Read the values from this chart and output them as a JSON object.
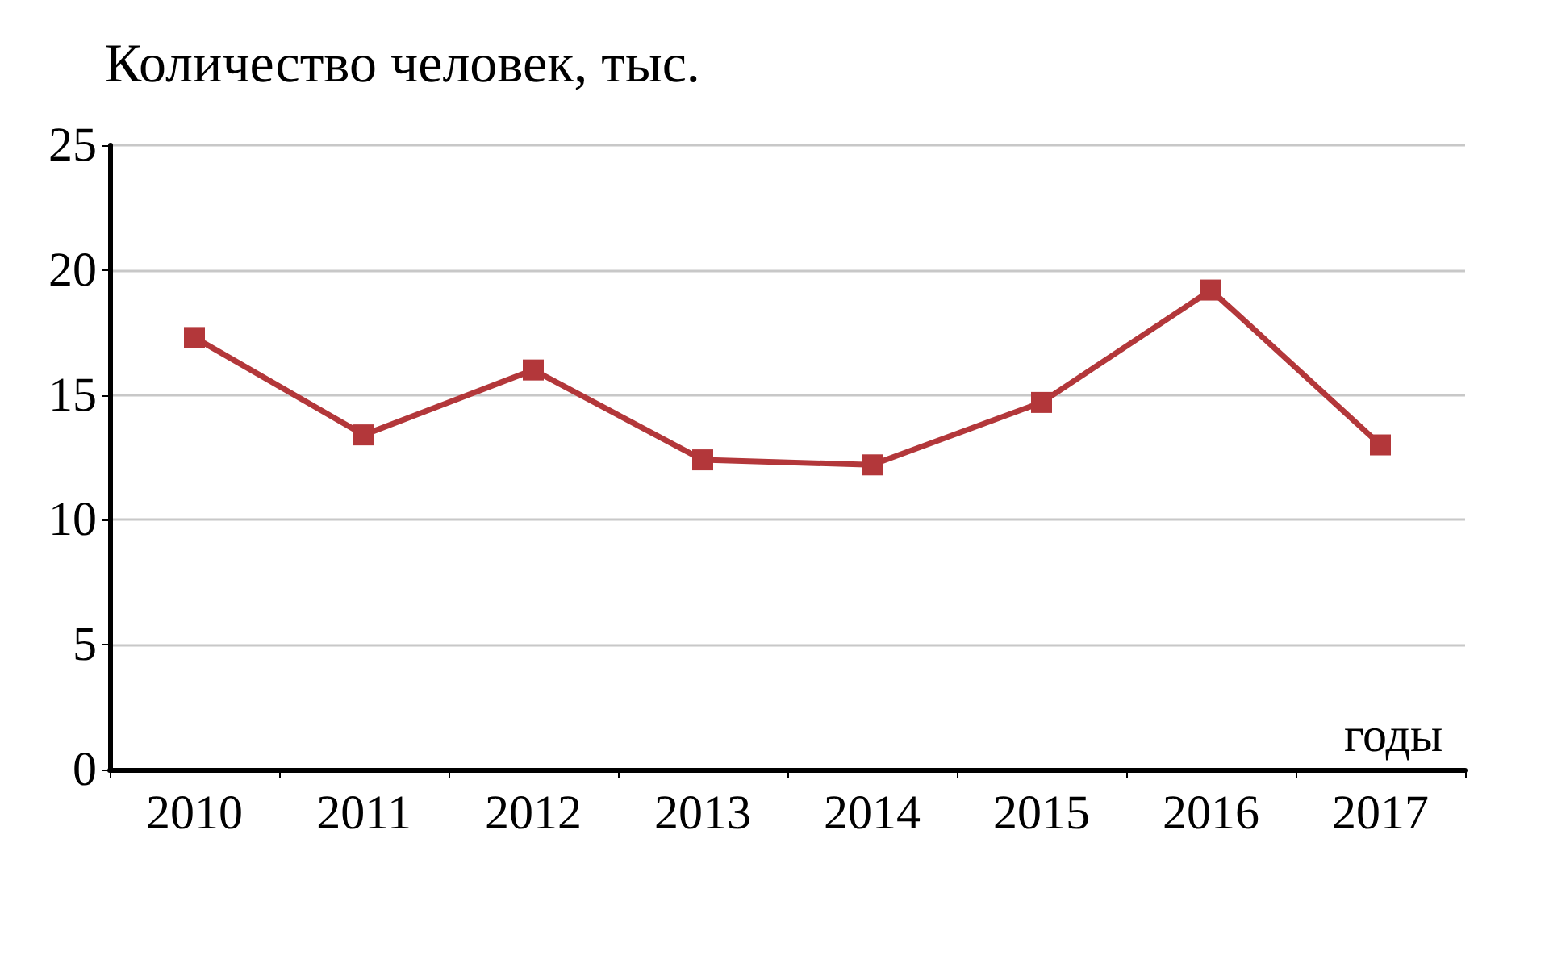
{
  "chart_data": {
    "type": "line",
    "ylabel": "Количество человек, тыс.",
    "xlabel": "годы",
    "categories": [
      "2010",
      "2011",
      "2012",
      "2013",
      "2014",
      "2015",
      "2016",
      "2017"
    ],
    "series": [
      {
        "color": "#b3373a",
        "values": [
          17.3,
          13.4,
          16.0,
          12.4,
          12.2,
          14.7,
          19.2,
          13.0
        ]
      }
    ],
    "ylim": [
      0,
      25
    ],
    "yticks": [
      0,
      5,
      10,
      15,
      20,
      25
    ],
    "grid": "y",
    "marker": "square",
    "line_style": "solid"
  }
}
